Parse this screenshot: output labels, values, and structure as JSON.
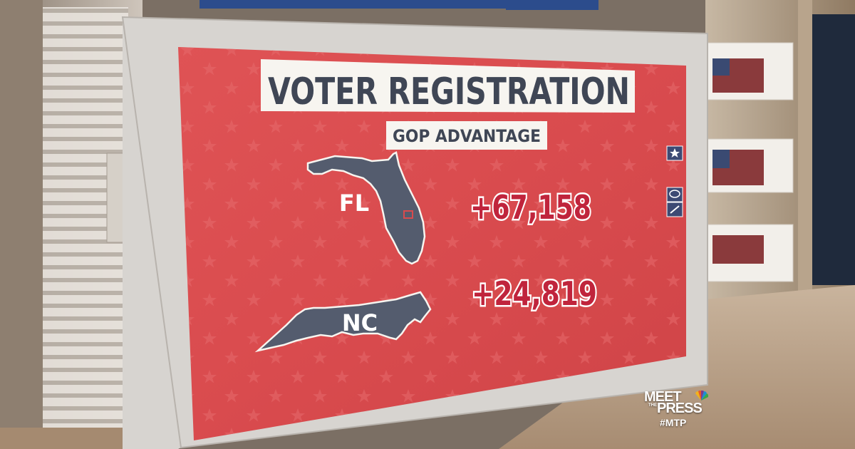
{
  "graphic": {
    "title": "VOTER REGISTRATION",
    "subtitle": "GOP ADVANTAGE",
    "states": [
      {
        "abbr": "FL",
        "value": "+67,158"
      },
      {
        "abbr": "NC",
        "value": "+24,819"
      }
    ]
  },
  "logo": {
    "line1": "MEET",
    "small": "THE",
    "line2": "PRESS",
    "hashtag": "#MTP"
  },
  "colors": {
    "screen_red": "#d84b4e",
    "state_gray": "#545c6e",
    "number_red": "#c0243c",
    "title_text": "#3f4655",
    "bezel": "#d9d6d2"
  },
  "icons": [
    "star-icon",
    "chat-bubble-icon",
    "pen-icon"
  ]
}
